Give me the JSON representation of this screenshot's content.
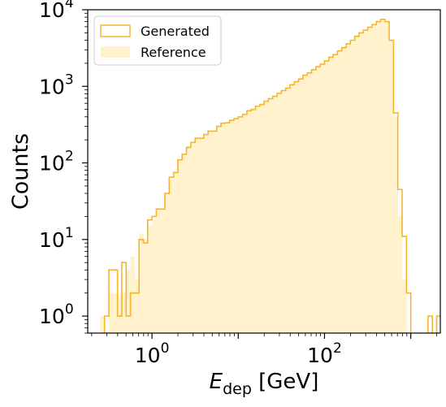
{
  "chart_data": {
    "type": "histogram",
    "xlabel_main": "E",
    "xlabel_sub": "dep",
    "xlabel_unit": " [GeV]",
    "ylabel": "Counts",
    "xscale": "log",
    "yscale": "log",
    "xlim": [
      0.18,
      2200
    ],
    "ylim": [
      0.6,
      10000
    ],
    "x_ticks": [
      {
        "value": 1,
        "base": "10",
        "exp": "0"
      },
      {
        "value": 100,
        "base": "10",
        "exp": "2"
      }
    ],
    "y_ticks": [
      {
        "value": 1,
        "base": "10",
        "exp": "0"
      },
      {
        "value": 10,
        "base": "10",
        "exp": "1"
      },
      {
        "value": 100,
        "base": "10",
        "exp": "2"
      },
      {
        "value": 1000,
        "base": "10",
        "exp": "3"
      },
      {
        "value": 10000,
        "base": "10",
        "exp": "4"
      }
    ],
    "legend": {
      "placement": "top-left",
      "entries": [
        {
          "label": "Generated",
          "style": "step"
        },
        {
          "label": "Reference",
          "style": "fill"
        }
      ]
    },
    "colors": {
      "generated_edge": "#f6b52e",
      "reference_fill": "#fff2cc"
    },
    "bins": {
      "log10_start": -0.7,
      "log10_width": 0.05
    },
    "series": [
      {
        "name": "Generated",
        "values": [
          0,
          0,
          0,
          1,
          4,
          4,
          1,
          5,
          1,
          2,
          2,
          10,
          9,
          18,
          20,
          25,
          25,
          40,
          65,
          75,
          110,
          130,
          160,
          185,
          210,
          210,
          235,
          260,
          260,
          300,
          330,
          335,
          360,
          380,
          400,
          430,
          480,
          500,
          550,
          580,
          640,
          690,
          740,
          810,
          880,
          950,
          1050,
          1150,
          1250,
          1400,
          1500,
          1650,
          1800,
          1950,
          2150,
          2400,
          2600,
          2900,
          3200,
          3600,
          4000,
          4500,
          5000,
          5400,
          5900,
          6400,
          7000,
          7500,
          7000,
          4000,
          450,
          45,
          11,
          2,
          0,
          0,
          0,
          0,
          1,
          0,
          1,
          1,
          1,
          0
        ]
      },
      {
        "name": "Reference",
        "values": [
          0,
          0,
          1,
          0,
          2,
          2,
          2,
          2,
          4,
          6,
          3,
          12,
          10,
          15,
          18,
          25,
          25,
          40,
          60,
          75,
          110,
          130,
          160,
          185,
          210,
          210,
          235,
          260,
          260,
          300,
          330,
          335,
          360,
          380,
          400,
          430,
          480,
          500,
          550,
          580,
          640,
          690,
          740,
          810,
          880,
          950,
          1050,
          1150,
          1250,
          1400,
          1500,
          1650,
          1800,
          1950,
          2150,
          2400,
          2600,
          2900,
          3200,
          3600,
          4000,
          4500,
          5000,
          5400,
          5900,
          6400,
          7000,
          7500,
          7000,
          4000,
          400,
          20,
          3,
          0,
          0,
          0,
          0,
          0,
          0,
          0,
          0,
          0,
          0,
          0
        ]
      }
    ]
  }
}
